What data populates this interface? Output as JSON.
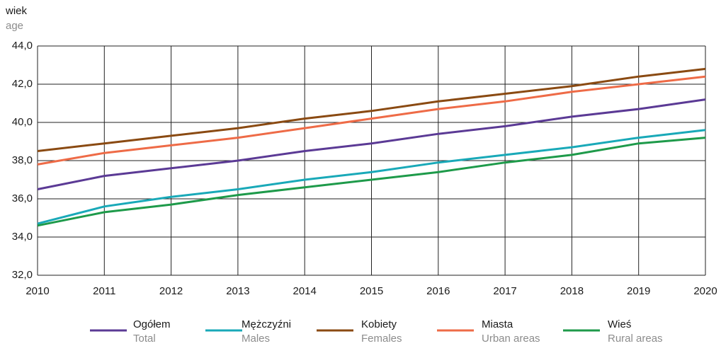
{
  "chart_data": {
    "type": "line",
    "y_label": "wiek",
    "y_label_en": "age",
    "x": [
      2010,
      2011,
      2012,
      2013,
      2014,
      2015,
      2016,
      2017,
      2018,
      2019,
      2020
    ],
    "xlim": [
      2010,
      2020
    ],
    "xticks": [
      2010,
      2011,
      2012,
      2013,
      2014,
      2015,
      2016,
      2017,
      2018,
      2019,
      2020
    ],
    "ylim": [
      32,
      44
    ],
    "yticks": [
      {
        "value": 32,
        "label": "32,0"
      },
      {
        "value": 34,
        "label": "34,0"
      },
      {
        "value": 36,
        "label": "36,0"
      },
      {
        "value": 38,
        "label": "38,0"
      },
      {
        "value": 40,
        "label": "40,0"
      },
      {
        "value": 42,
        "label": "42,0"
      },
      {
        "value": 44,
        "label": "44,0"
      }
    ],
    "grid": true,
    "legend": "bottom",
    "series": [
      {
        "name": "Ogółem",
        "name_en": "Total",
        "color": "#5b3a95",
        "values": [
          36.5,
          37.2,
          37.6,
          38.0,
          38.5,
          38.9,
          39.4,
          39.8,
          40.3,
          40.7,
          41.2
        ]
      },
      {
        "name": "Mężczyźni",
        "name_en": "Males",
        "color": "#19a9b8",
        "values": [
          34.7,
          35.6,
          36.1,
          36.5,
          37.0,
          37.4,
          37.9,
          38.3,
          38.7,
          39.2,
          39.6
        ]
      },
      {
        "name": "Kobiety",
        "name_en": "Females",
        "color": "#8a4a12",
        "values": [
          38.5,
          38.9,
          39.3,
          39.7,
          40.2,
          40.6,
          41.1,
          41.5,
          41.9,
          42.4,
          42.8
        ]
      },
      {
        "name": "Miasta",
        "name_en": "Urban areas",
        "color": "#ee6b47",
        "values": [
          37.8,
          38.4,
          38.8,
          39.2,
          39.7,
          40.2,
          40.7,
          41.1,
          41.6,
          42.0,
          42.4
        ]
      },
      {
        "name": "Wieś",
        "name_en": "Rural areas",
        "color": "#1e9a4a",
        "values": [
          34.6,
          35.3,
          35.7,
          36.2,
          36.6,
          37.0,
          37.4,
          37.9,
          38.3,
          38.9,
          39.2
        ]
      }
    ]
  }
}
